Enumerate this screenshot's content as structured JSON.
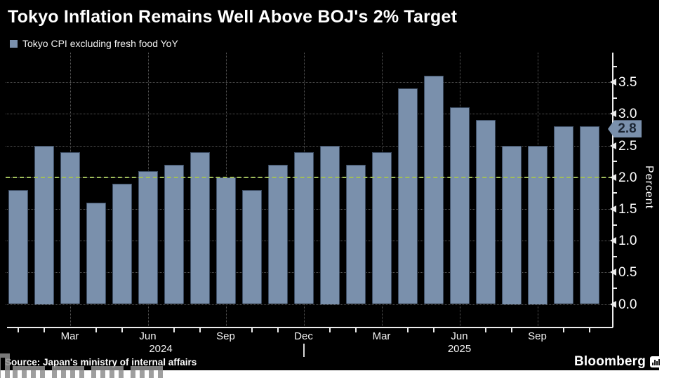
{
  "header": {
    "title": "Tokyo Inflation Remains Well Above BOJ's 2% Target"
  },
  "legend": {
    "label": "Tokyo CPI excluding fresh food YoY",
    "swatch_color": "#7a90ac"
  },
  "footer": {
    "source": "Source: Japan's ministry of internal affairs",
    "brand": "Bloomberg"
  },
  "colors": {
    "background": "#000000",
    "page_margin": "#ffffff",
    "bar": "#7a90ac",
    "bar_border": "#3c4c62",
    "grid": "#585858",
    "axis": "#ececec",
    "text": "#ffffff",
    "target_line": "#a0be5a",
    "badge_bg": "#7a90ac",
    "badge_text": "#1c2634",
    "watermark": "#8f8f8f"
  },
  "chart_data": {
    "type": "bar",
    "title": "Tokyo Inflation Remains Well Above BOJ's 2% Target",
    "categories": [
      "Jan 2024",
      "Feb 2024",
      "Mar 2024",
      "Apr 2024",
      "May 2024",
      "Jun 2024",
      "Jul 2024",
      "Aug 2024",
      "Sep 2024",
      "Oct 2024",
      "Nov 2024",
      "Dec 2024",
      "Jan 2025",
      "Feb 2025",
      "Mar 2025",
      "Apr 2025",
      "May 2025",
      "Jun 2025",
      "Jul 2025",
      "Aug 2025",
      "Sep 2025",
      "Oct 2025",
      "Nov 2025"
    ],
    "series": [
      {
        "name": "Tokyo CPI excluding fresh food YoY",
        "values": [
          1.8,
          2.5,
          2.4,
          1.6,
          1.9,
          2.1,
          2.2,
          2.4,
          2.0,
          1.8,
          2.2,
          2.4,
          2.5,
          2.2,
          2.4,
          3.4,
          3.6,
          3.1,
          2.9,
          2.5,
          2.5,
          2.8,
          2.8
        ]
      }
    ],
    "xlabel": "",
    "ylabel": "Percent",
    "ylim": [
      0,
      3.9
    ],
    "ytick_values": [
      0,
      0.5,
      1.0,
      1.5,
      2.0,
      2.5,
      3.0,
      3.5
    ],
    "ytick_labels": [
      "0.0",
      "0.5",
      "1.0",
      "1.5",
      "2.0",
      "2.5",
      "3.0",
      "3.5"
    ],
    "ytick_minor_step": 0.25,
    "grid": true,
    "legend_position": "top-left",
    "y_axis_side": "right",
    "reference_line": {
      "value": 2.0,
      "style": "dashed",
      "color": "#a0be5a"
    },
    "last_value_badge": "2.8",
    "x_tick_labels": [
      {
        "index": 2,
        "label": "Mar"
      },
      {
        "index": 5,
        "label": "Jun"
      },
      {
        "index": 8,
        "label": "Sep"
      },
      {
        "index": 11,
        "label": "Dec"
      },
      {
        "index": 14,
        "label": "Mar"
      },
      {
        "index": 17,
        "label": "Jun"
      },
      {
        "index": 20,
        "label": "Sep"
      }
    ],
    "year_labels": [
      {
        "label": "2024",
        "span": [
          0,
          11
        ]
      },
      {
        "label": "2025",
        "span": [
          12,
          22
        ]
      }
    ]
  }
}
